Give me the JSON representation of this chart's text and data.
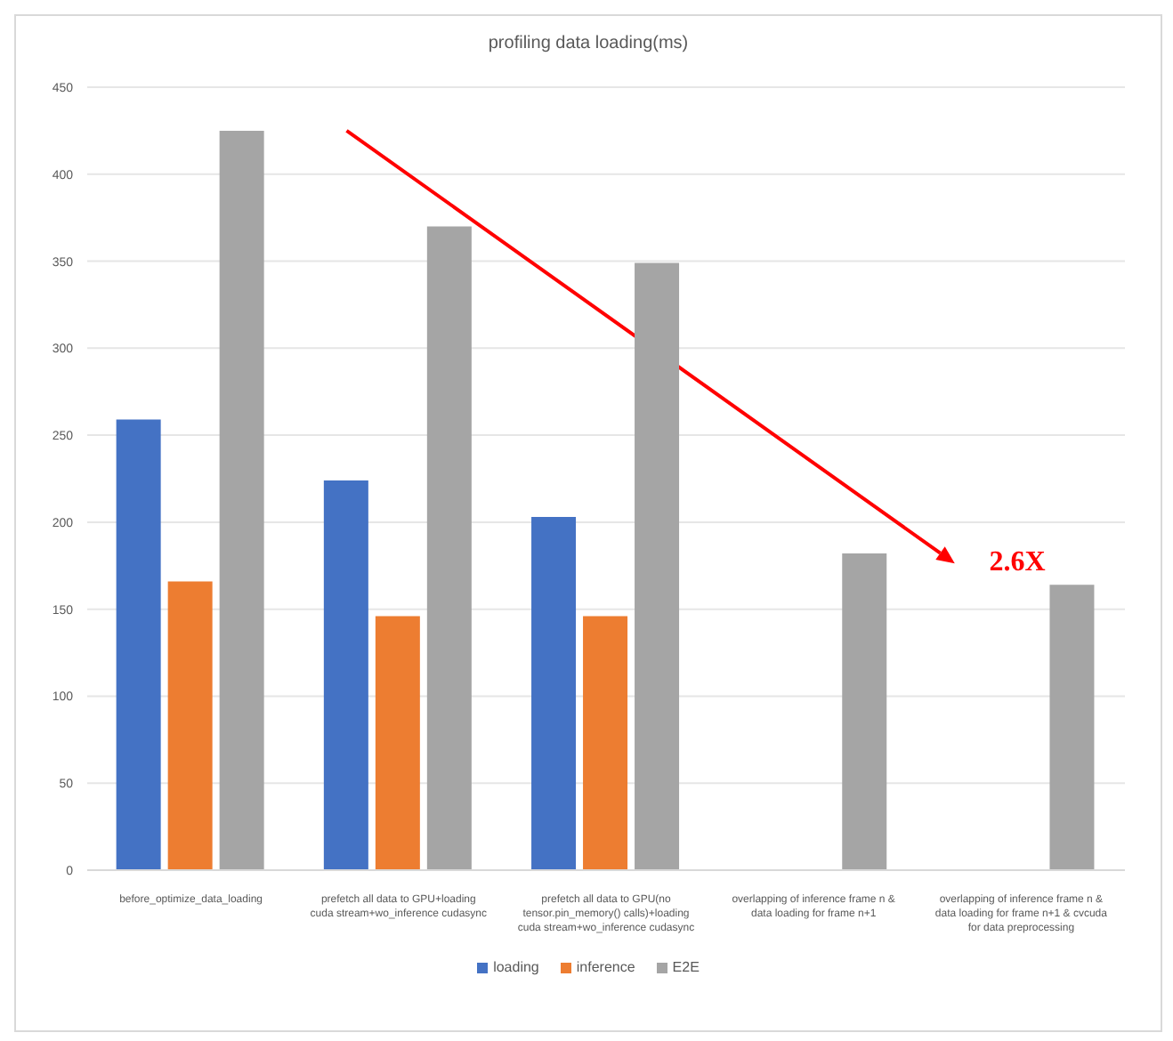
{
  "chart_data": {
    "type": "bar",
    "title": "profiling data loading(ms)",
    "categories": [
      "before_optimize_data_loading",
      "prefetch all data to GPU+loading cuda stream+wo_inference cudasync",
      "prefetch all data to GPU(no tensor.pin_memory() calls)+loading cuda stream+wo_inference cudasync",
      "overlapping of inference frame n & data loading for frame n+1",
      "overlapping of inference frame n & data loading for frame n+1 & cvcuda for data preprocessing"
    ],
    "series": [
      {
        "name": "loading",
        "color": "#4472c4",
        "values": [
          259,
          224,
          203,
          null,
          null
        ]
      },
      {
        "name": "inference",
        "color": "#ed7d31",
        "values": [
          166,
          146,
          146,
          null,
          null
        ]
      },
      {
        "name": "E2E",
        "color": "#a5a5a5",
        "values": [
          425,
          370,
          349,
          182,
          164
        ]
      }
    ],
    "ylim": [
      0,
      450
    ],
    "yticks": [
      0,
      50,
      100,
      150,
      200,
      250,
      300,
      350,
      400,
      450
    ],
    "grid": "y",
    "legend": "bottom",
    "annotations": [
      "2.6X"
    ]
  }
}
